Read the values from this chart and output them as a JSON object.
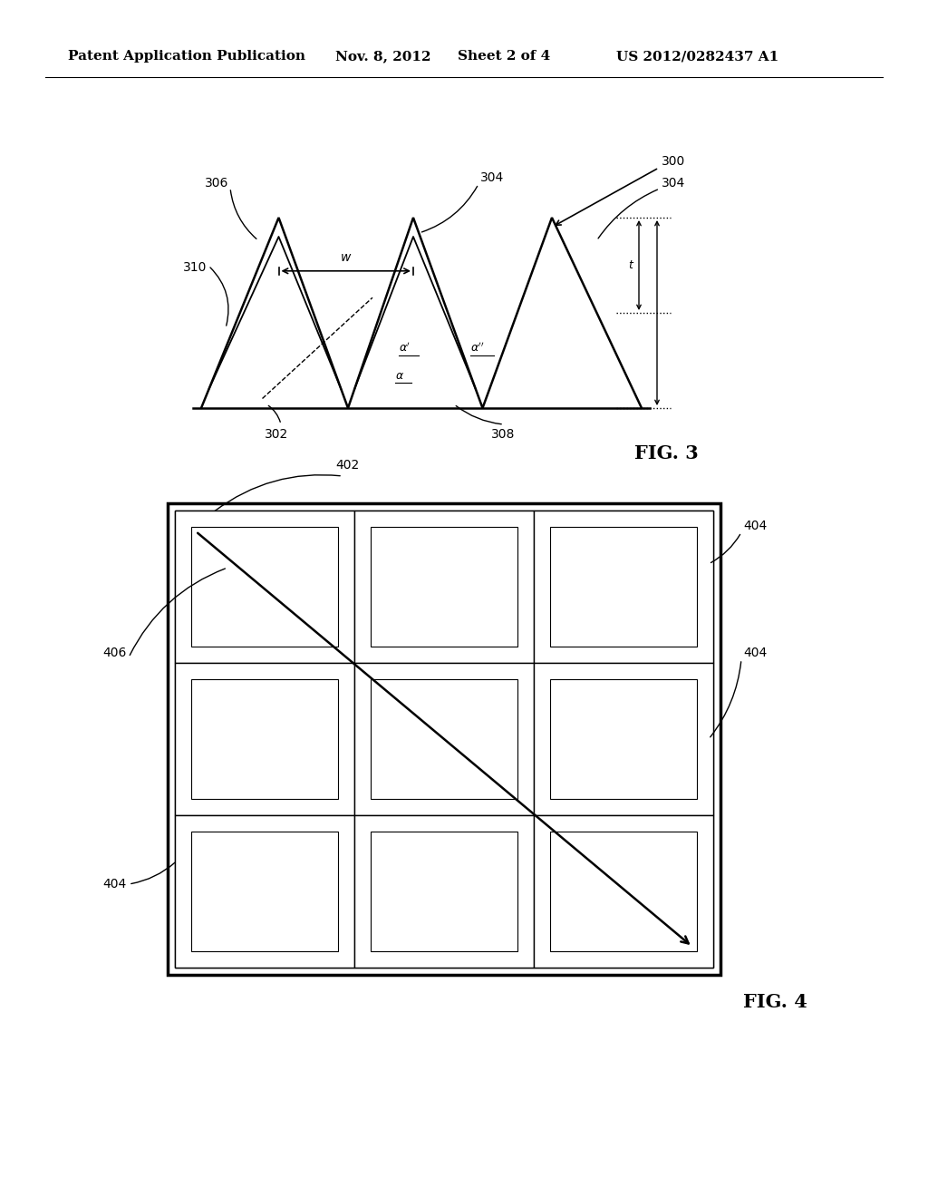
{
  "bg_color": "#ffffff",
  "line_color": "#000000",
  "header_text": "Patent Application Publication",
  "header_date": "Nov. 8, 2012",
  "header_sheet": "Sheet 2 of 4",
  "header_patent": "US 2012/0282437 A1",
  "fig3_label": "FIG. 3",
  "fig4_label": "FIG. 4"
}
